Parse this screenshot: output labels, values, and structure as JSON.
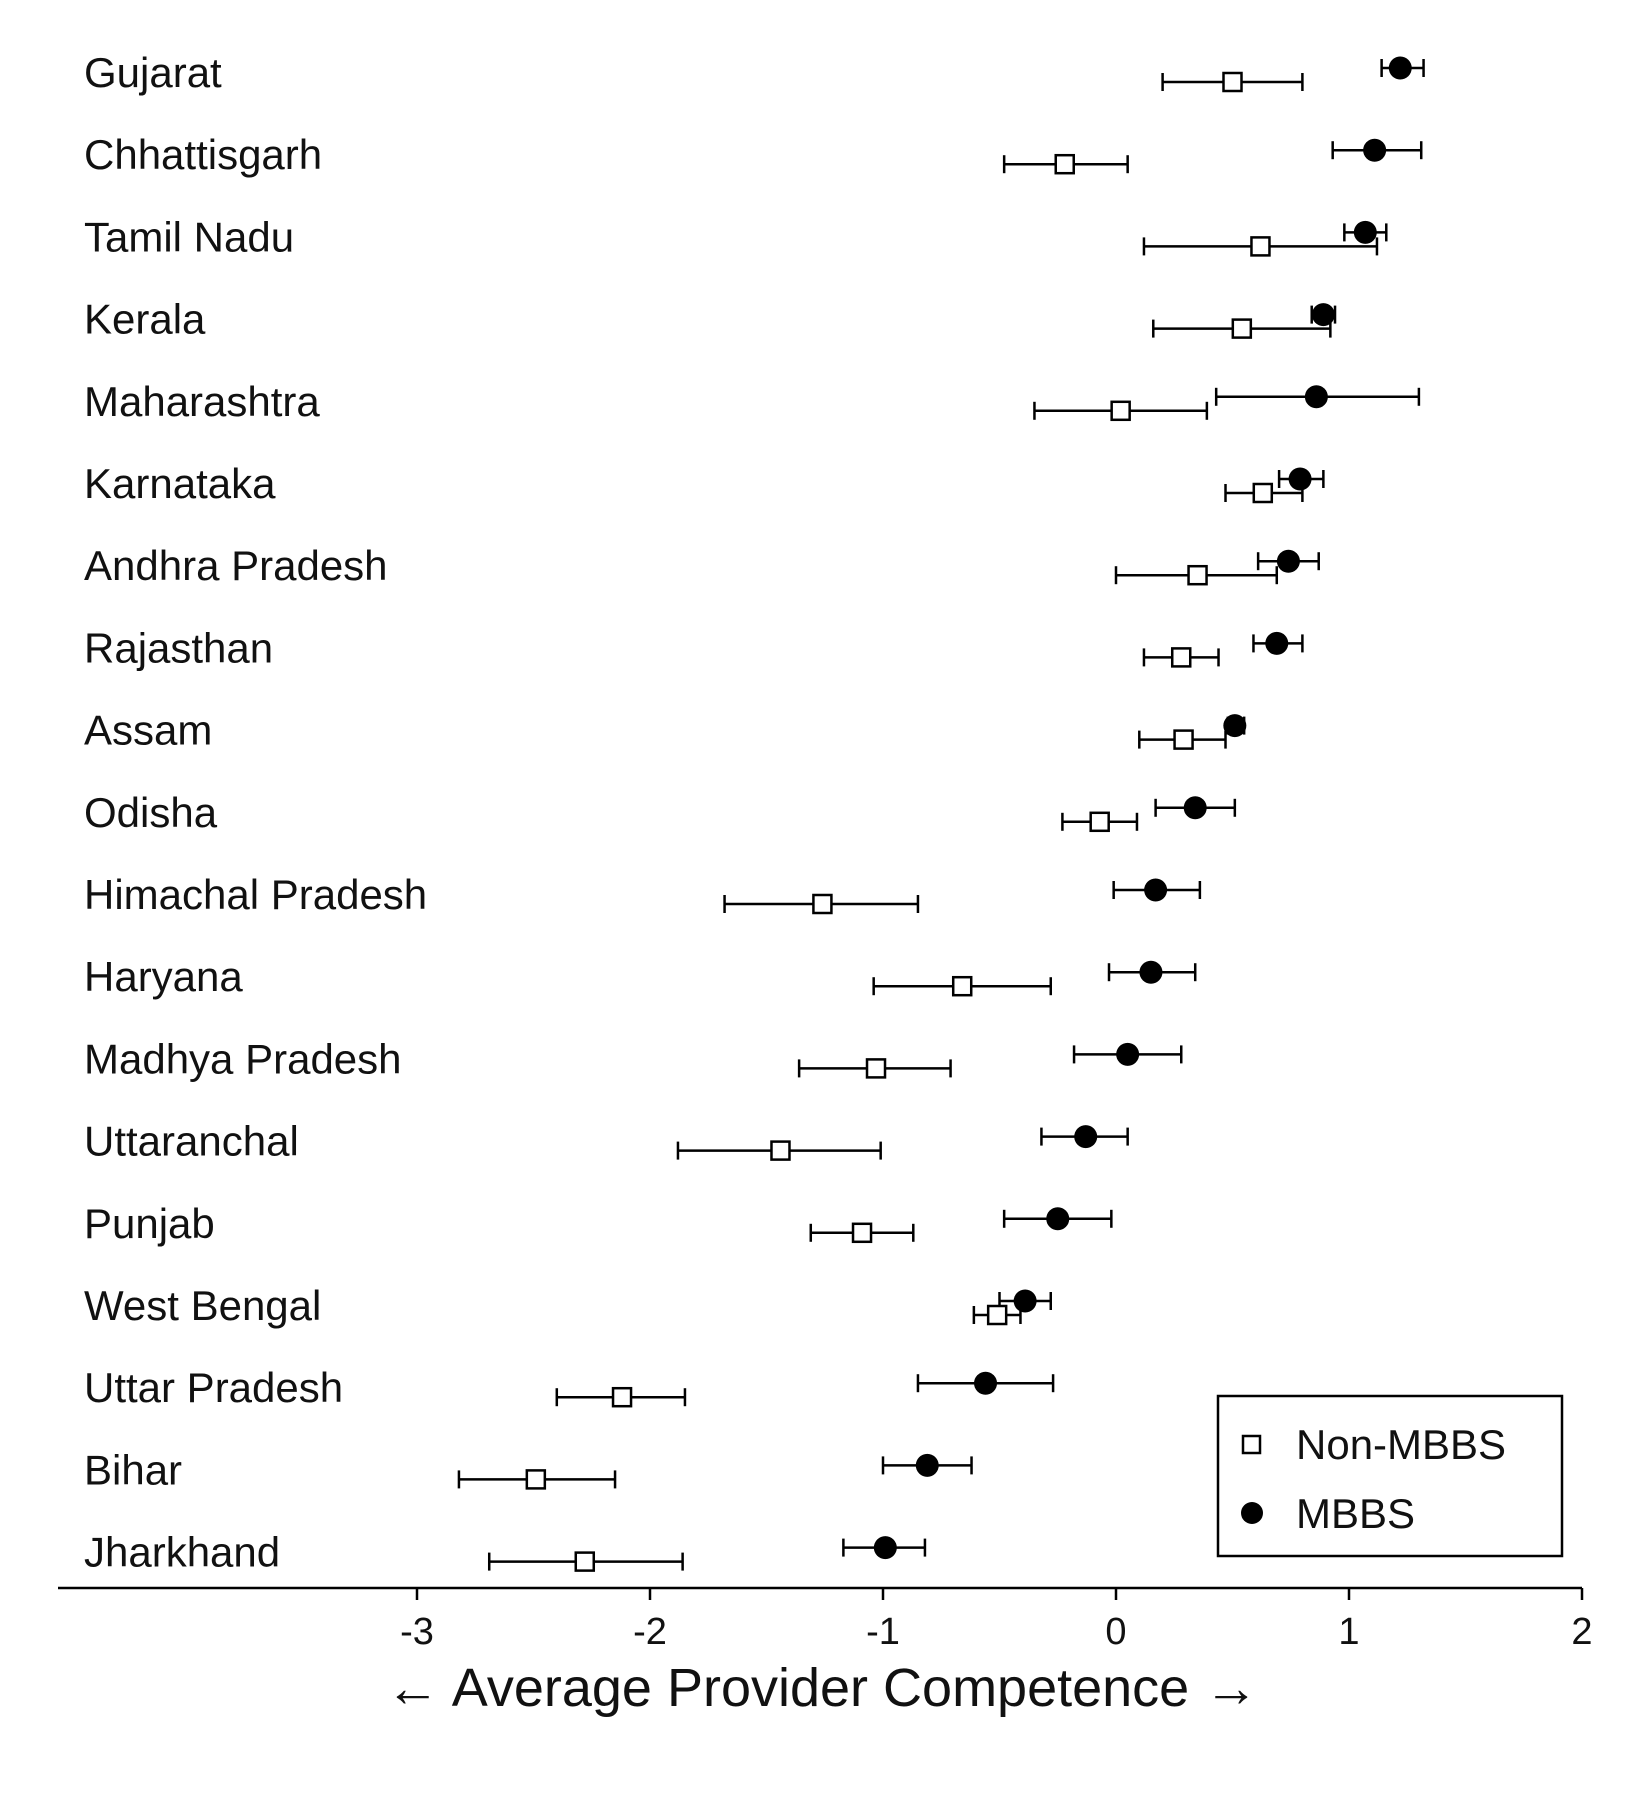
{
  "chart_data": {
    "type": "scatter",
    "title": "",
    "xlabel": "← Average Provider Competence →",
    "ylabel": "",
    "xlim": [
      -3.5,
      2.05
    ],
    "xticks": [
      -3,
      -2,
      -1,
      0,
      1,
      2
    ],
    "xtick_labels": [
      "-3",
      "-2",
      "-1",
      "0",
      "1",
      "2"
    ],
    "grid": false,
    "legend_placement": "bottom-right",
    "categories": [
      "Gujarat",
      "Chhattisgarh",
      "Tamil Nadu",
      "Kerala",
      "Maharashtra",
      "Karnataka",
      "Andhra Pradesh",
      "Rajasthan",
      "Assam",
      "Odisha",
      "Himachal Pradesh",
      "Haryana",
      "Madhya Pradesh",
      "Uttaranchal",
      "Punjab",
      "West Bengal",
      "Uttar Pradesh",
      "Bihar",
      "Jharkhand"
    ],
    "series": [
      {
        "name": "Non-MBBS",
        "marker": "open-square",
        "color": "#000000",
        "values": [
          0.5,
          -0.22,
          0.62,
          0.54,
          0.02,
          0.63,
          0.35,
          0.28,
          0.29,
          -0.07,
          -1.26,
          -0.66,
          -1.03,
          -1.44,
          -1.09,
          -0.51,
          -2.12,
          -2.49,
          -2.28
        ],
        "ci_low": [
          0.2,
          -0.48,
          0.12,
          0.16,
          -0.35,
          0.47,
          0.0,
          0.12,
          0.1,
          -0.23,
          -1.68,
          -1.04,
          -1.36,
          -1.88,
          -1.31,
          -0.61,
          -2.4,
          -2.82,
          -2.69
        ],
        "ci_high": [
          0.8,
          0.05,
          1.12,
          0.92,
          0.39,
          0.8,
          0.69,
          0.44,
          0.47,
          0.09,
          -0.85,
          -0.28,
          -0.71,
          -1.01,
          -0.87,
          -0.41,
          -1.85,
          -2.15,
          -1.86
        ]
      },
      {
        "name": "MBBS",
        "marker": "filled-circle",
        "color": "#000000",
        "values": [
          1.22,
          1.11,
          1.07,
          0.89,
          0.86,
          0.79,
          0.74,
          0.69,
          0.51,
          0.34,
          0.17,
          0.15,
          0.05,
          -0.13,
          -0.25,
          -0.39,
          -0.56,
          -0.81,
          -0.99
        ],
        "ci_low": [
          1.14,
          0.93,
          0.98,
          0.84,
          0.43,
          0.7,
          0.61,
          0.59,
          0.48,
          0.17,
          -0.01,
          -0.03,
          -0.18,
          -0.32,
          -0.48,
          -0.5,
          -0.85,
          -1.0,
          -1.17
        ],
        "ci_high": [
          1.32,
          1.31,
          1.16,
          0.94,
          1.3,
          0.89,
          0.87,
          0.8,
          0.55,
          0.51,
          0.36,
          0.34,
          0.28,
          0.05,
          -0.02,
          -0.28,
          -0.27,
          -0.62,
          -0.82
        ]
      }
    ]
  }
}
